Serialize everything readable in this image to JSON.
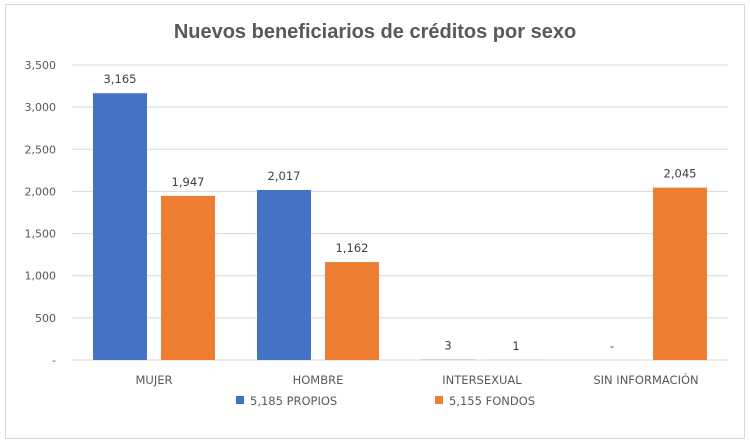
{
  "chart_data": {
    "type": "bar",
    "title": "Nuevos beneficiarios de créditos por sexo",
    "xlabel": "",
    "ylabel": "",
    "ylim": [
      0,
      3500
    ],
    "yticks": [
      0,
      500,
      1000,
      1500,
      2000,
      2500,
      3000,
      3500
    ],
    "ytick_labels": [
      "-",
      "500",
      "1,000",
      "1,500",
      "2,000",
      "2,500",
      "3,000",
      "3,500"
    ],
    "grid": true,
    "legend_position": "bottom",
    "categories": [
      "MUJER",
      "HOMBRE",
      "INTERSEXUAL",
      "SIN INFORMACIÓN"
    ],
    "series": [
      {
        "name": "PROPIOS",
        "legend_label": "5,185   PROPIOS",
        "color": "#4472C4",
        "values": [
          3165,
          2017,
          3,
          0
        ],
        "labels": [
          "3,165",
          "2,017",
          "3",
          "-"
        ]
      },
      {
        "name": "FONDOS",
        "legend_label": "5,155   FONDOS",
        "color": "#ED7D31",
        "values": [
          1947,
          1162,
          1,
          2045
        ],
        "labels": [
          "1,947",
          "1,162",
          "1",
          "2,045"
        ]
      }
    ]
  }
}
